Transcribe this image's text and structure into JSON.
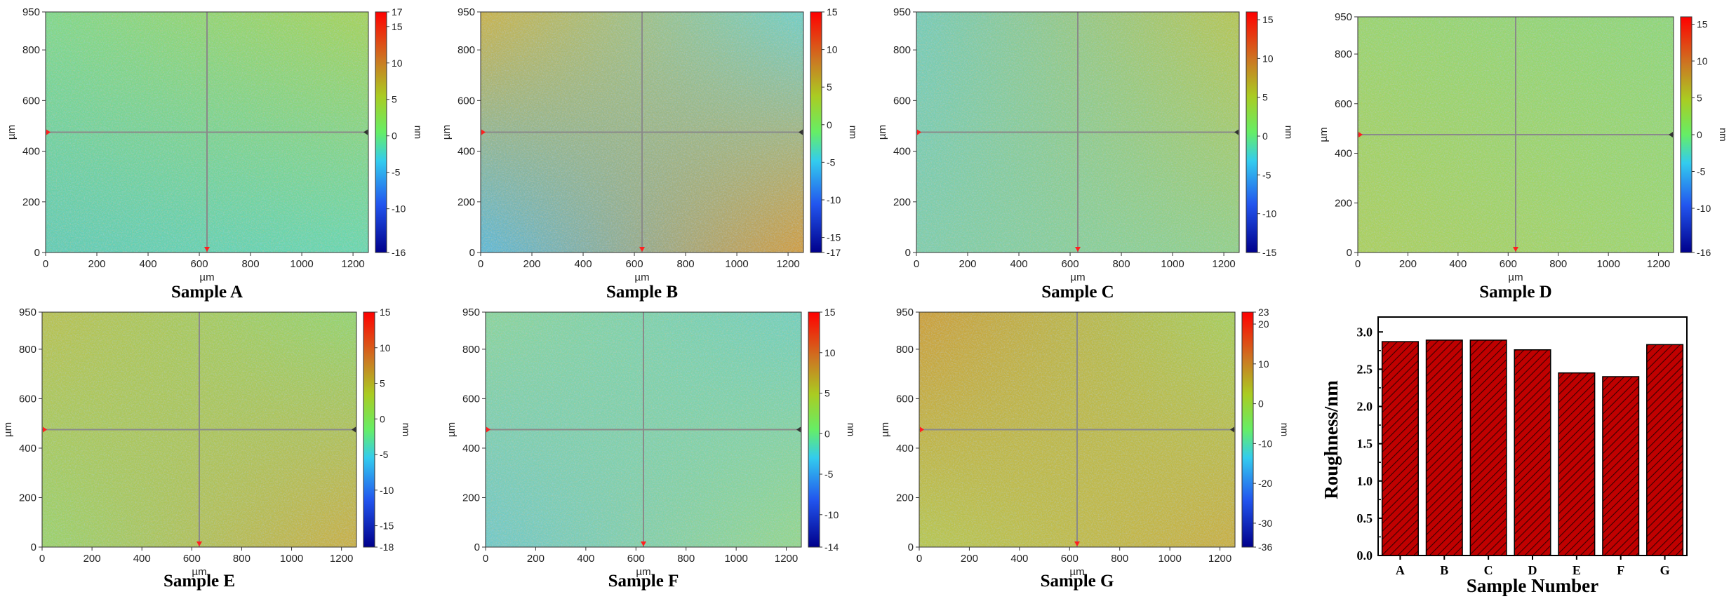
{
  "chart_data": [
    {
      "type": "heatmap",
      "title": "Sample A",
      "xlabel": "µm",
      "ylabel": "µm",
      "colorbar_unit": "nm",
      "xlim": [
        0,
        1260
      ],
      "ylim": [
        0,
        950
      ],
      "xticks": [
        "0",
        "200",
        "400",
        "600",
        "800",
        "1000",
        "1200"
      ],
      "yticks": [
        "0",
        "200",
        "400",
        "600",
        "800",
        "950"
      ],
      "colorbar_ticks": [
        "17",
        "15",
        "10",
        "5",
        "0",
        "-5",
        "-10",
        "-16"
      ],
      "zmin": -16,
      "zmax": 17
    },
    {
      "type": "heatmap",
      "title": "Sample B",
      "xlabel": "µm",
      "ylabel": "µm",
      "colorbar_unit": "nm",
      "xlim": [
        0,
        1260
      ],
      "ylim": [
        0,
        950
      ],
      "xticks": [
        "0",
        "200",
        "400",
        "600",
        "800",
        "1000",
        "1200"
      ],
      "yticks": [
        "0",
        "200",
        "400",
        "600",
        "800",
        "950"
      ],
      "colorbar_ticks": [
        "15",
        "10",
        "5",
        "0",
        "-5",
        "-10",
        "-15",
        "-17"
      ],
      "zmin": -17,
      "zmax": 15
    },
    {
      "type": "heatmap",
      "title": "Sample C",
      "xlabel": "µm",
      "ylabel": "µm",
      "colorbar_unit": "nm",
      "xlim": [
        0,
        1260
      ],
      "ylim": [
        0,
        950
      ],
      "xticks": [
        "0",
        "200",
        "400",
        "600",
        "800",
        "1000",
        "1200"
      ],
      "yticks": [
        "0",
        "200",
        "400",
        "600",
        "800",
        "950"
      ],
      "colorbar_ticks": [
        "15",
        "10",
        "5",
        "0",
        "-5",
        "-10",
        "-15"
      ],
      "zmin": -15,
      "zmax": 16
    },
    {
      "type": "heatmap",
      "title": "Sample D",
      "xlabel": "µm",
      "ylabel": "µm",
      "colorbar_unit": "nm",
      "xlim": [
        0,
        1260
      ],
      "ylim": [
        0,
        950
      ],
      "xticks": [
        "0",
        "200",
        "400",
        "600",
        "800",
        "1000",
        "1200"
      ],
      "yticks": [
        "0",
        "200",
        "400",
        "600",
        "800",
        "950"
      ],
      "colorbar_ticks": [
        "15",
        "10",
        "5",
        "0",
        "-5",
        "-10",
        "-16"
      ],
      "zmin": -16,
      "zmax": 16
    },
    {
      "type": "heatmap",
      "title": "Sample E",
      "xlabel": "µm",
      "ylabel": "µm",
      "colorbar_unit": "nm",
      "xlim": [
        0,
        1260
      ],
      "ylim": [
        0,
        950
      ],
      "xticks": [
        "0",
        "200",
        "400",
        "600",
        "800",
        "1000",
        "1200"
      ],
      "yticks": [
        "0",
        "200",
        "400",
        "600",
        "800",
        "950"
      ],
      "colorbar_ticks": [
        "15",
        "10",
        "5",
        "0",
        "-5",
        "-10",
        "-15",
        "-18"
      ],
      "zmin": -18,
      "zmax": 15
    },
    {
      "type": "heatmap",
      "title": "Sample F",
      "xlabel": "µm",
      "ylabel": "µm",
      "colorbar_unit": "nm",
      "xlim": [
        0,
        1260
      ],
      "ylim": [
        0,
        950
      ],
      "xticks": [
        "0",
        "200",
        "400",
        "600",
        "800",
        "1000",
        "1200"
      ],
      "yticks": [
        "0",
        "200",
        "400",
        "600",
        "800",
        "950"
      ],
      "colorbar_ticks": [
        "15",
        "10",
        "5",
        "0",
        "-5",
        "-10",
        "-14"
      ],
      "zmin": -14,
      "zmax": 15
    },
    {
      "type": "heatmap",
      "title": "Sample G",
      "xlabel": "µm",
      "ylabel": "µm",
      "colorbar_unit": "nm",
      "xlim": [
        0,
        1260
      ],
      "ylim": [
        0,
        950
      ],
      "xticks": [
        "0",
        "200",
        "400",
        "600",
        "800",
        "1000",
        "1200"
      ],
      "yticks": [
        "0",
        "200",
        "400",
        "600",
        "800",
        "950"
      ],
      "colorbar_ticks": [
        "23",
        "20",
        "10",
        "0",
        "-10",
        "-20",
        "-30",
        "-36"
      ],
      "zmin": -36,
      "zmax": 23
    },
    {
      "type": "bar",
      "title": "",
      "xlabel": "Sample Number",
      "ylabel": "Roughness/nm",
      "categories": [
        "A",
        "B",
        "C",
        "D",
        "E",
        "F",
        "G"
      ],
      "values": [
        2.87,
        2.89,
        2.89,
        2.76,
        2.45,
        2.4,
        2.83
      ],
      "ylim": [
        0,
        3.2
      ],
      "yticks": [
        "0.0",
        "0.5",
        "1.0",
        "1.5",
        "2.0",
        "2.5",
        "3.0"
      ],
      "bar_color": "#c00000",
      "hatch": "diagonal"
    }
  ]
}
